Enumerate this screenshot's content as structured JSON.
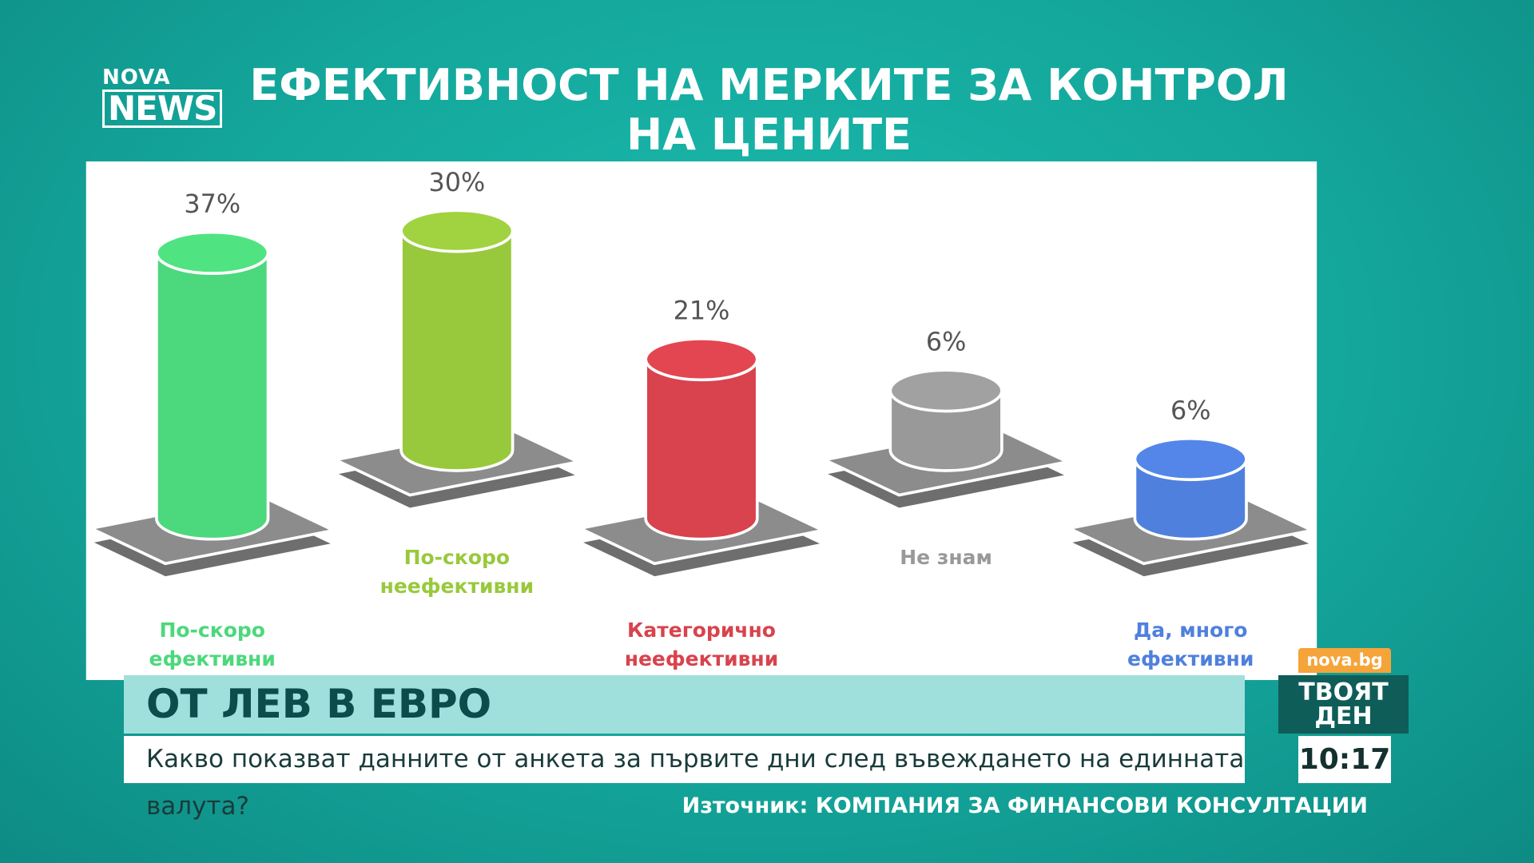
{
  "logo": {
    "top": "NOVA",
    "bottom": "NEWS"
  },
  "chart_data": {
    "type": "cylinder",
    "title": "ЕФЕКТИВНОСТ НА МЕРКИТЕ ЗА КОНТРОЛ НА ЦЕНИТЕ",
    "categories": [
      "По-скоро ефективни",
      "По-скоро неефективни",
      "Категорично неефективни",
      "Не знам",
      "Да, много ефективни"
    ],
    "values": [
      37,
      30,
      21,
      6,
      6
    ],
    "value_labels": [
      "37%",
      "30%",
      "21%",
      "6%",
      "6%"
    ],
    "colors": [
      "#4cd87c",
      "#98c93c",
      "#d8434d",
      "#999999",
      "#4f80dd"
    ]
  },
  "banner": {
    "headline": "ОТ ЛЕВ В ЕВРО",
    "subline": "Какво показват данните от анкета за първите дни след въвеждането на единната валута?"
  },
  "source": "Източник: КОМПАНИЯ ЗА ФИНАНСОВИ КОНСУЛТАЦИИ",
  "widget": {
    "site": "nova.bg",
    "show": "ТВОЯТ ДЕН",
    "time": "10:17"
  }
}
